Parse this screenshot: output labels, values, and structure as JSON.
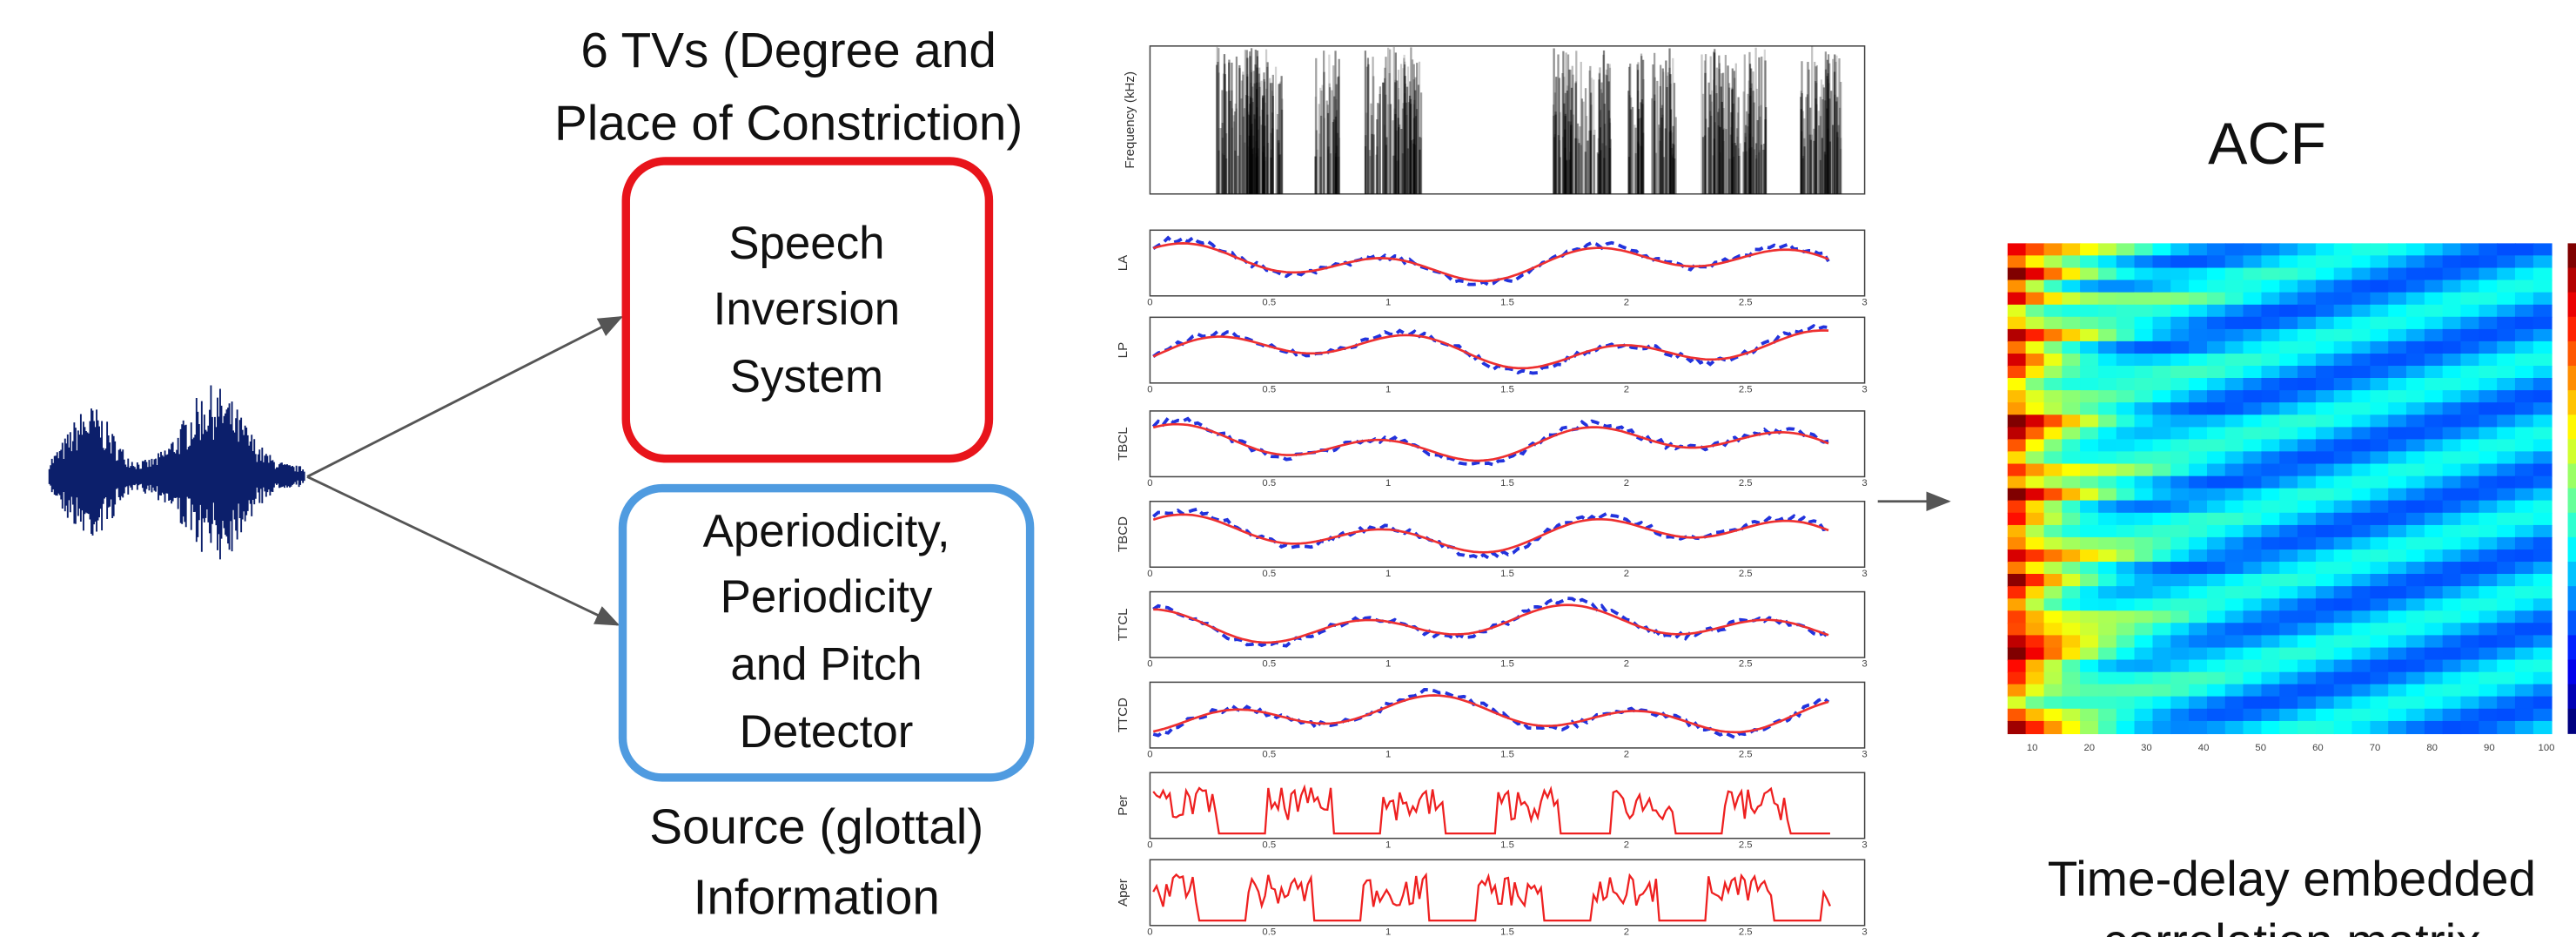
{
  "tv_title": {
    "lines": [
      "6 TVs (Degree and",
      "Place of Constriction)"
    ]
  },
  "speech_inversion_box": {
    "lines": [
      "Speech",
      "Inversion",
      "System"
    ]
  },
  "source_box": {
    "lines": [
      "Aperiodicity,",
      "Periodicity",
      "and Pitch",
      "Detector"
    ]
  },
  "source_caption": {
    "lines": [
      "Source (glottal)",
      "Information"
    ]
  },
  "acf_title": "ACF",
  "acf_caption": {
    "lines": [
      "Time-delay embedded",
      "correlation matrix"
    ]
  },
  "panels": {
    "labels": [
      "LA",
      "LP",
      "TBCL",
      "TBCD",
      "TTCL",
      "TTCD",
      "Per",
      "Aper"
    ],
    "x_ticks": [
      "0",
      "0.5",
      "1",
      "1.5",
      "2",
      "2.5",
      "3"
    ],
    "spectrogram_y_label": "Frequency (kHz)"
  },
  "heatmap": {
    "x_ticks": [
      "10",
      "20",
      "30",
      "40",
      "50",
      "60",
      "70",
      "80",
      "90",
      "100"
    ]
  }
}
